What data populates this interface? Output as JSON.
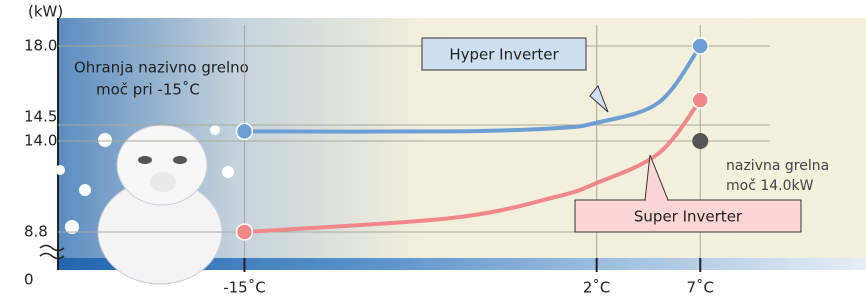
{
  "chart_data": {
    "type": "line",
    "y_label": "(kW)",
    "x": [
      -15,
      -5,
      0,
      2,
      5,
      7
    ],
    "xlim": [
      -24,
      15
    ],
    "xticks": [
      {
        "value": -15,
        "label": "-15˚C"
      },
      {
        "value": 2,
        "label": "2˚C"
      },
      {
        "value": 7,
        "label": "7˚C"
      }
    ],
    "yticks": [
      0,
      8.8,
      {
        "value": 14,
        "label": "14.0"
      },
      14.5,
      {
        "value": 18,
        "label": "18.0"
      }
    ],
    "series": [
      {
        "name": "Hyper Inverter",
        "color": "#6e9fd4",
        "values": [
          14.3,
          14.3,
          14.4,
          14.6,
          15.5,
          18.0
        ]
      },
      {
        "name": "Super Inverter",
        "color": "#f0888a",
        "values": [
          8.8,
          9.6,
          10.8,
          11.6,
          13.3,
          15.6
        ]
      }
    ],
    "rated_point": {
      "x": 7,
      "y": 14.0,
      "color": "#555555",
      "label": [
        "nazivna grelna",
        "moč 14.0kW"
      ]
    },
    "annotation": [
      "Ohranja nazivno grelno",
      "moč pri -15˚C"
    ],
    "grid": true
  }
}
